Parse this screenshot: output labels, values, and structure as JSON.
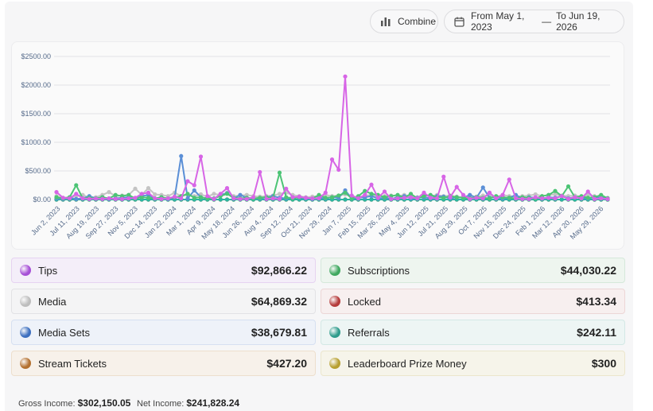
{
  "controls": {
    "combine_label": "Combine",
    "date_from": "From May 1, 2023",
    "date_to": "To Jun 19, 2026"
  },
  "chart_data": {
    "type": "line",
    "title": "",
    "xlabel": "",
    "ylabel": "",
    "ylim": [
      0,
      2500
    ],
    "y_ticks": [
      0,
      500,
      1000,
      1500,
      2000,
      2500
    ],
    "y_tick_labels": [
      "$0.00",
      "$500.00",
      "$1000.00",
      "$1500.00",
      "$2000.00",
      "$2500.00"
    ],
    "x_tick_labels": [
      "Jun 2, 2023",
      "Jul 11, 2023",
      "Aug 19, 2023",
      "Sep 27, 2023",
      "Nov 5, 2023",
      "Dec 14, 2023",
      "Jan 22, 2024",
      "Mar 1, 2024",
      "Apr 9, 2024",
      "May 18, 2024",
      "Jun 26, 2024",
      "Aug 4, 2024",
      "Sep 12, 2024",
      "Oct 21, 2024",
      "Nov 29, 2024",
      "Jan 7, 2025",
      "Feb 15, 2025",
      "Mar 26, 2025",
      "May 4, 2025",
      "Jun 12, 2025",
      "Jul 21, 2025",
      "Aug 29, 2025",
      "Oct 7, 2025",
      "Nov 15, 2025",
      "Dec 24, 2025",
      "Feb 1, 2026",
      "Mar 12, 2026",
      "Apr 20, 2026",
      "May 29, 2026"
    ],
    "grid": true,
    "legend": "none",
    "x_start": "2023-06-02",
    "x_step_days": 13,
    "series": [
      {
        "name": "Tips",
        "color": "#d765e6",
        "values": [
          130,
          30,
          20,
          100,
          20,
          10,
          15,
          10,
          20,
          10,
          10,
          20,
          30,
          100,
          120,
          20,
          10,
          20,
          50,
          20,
          320,
          250,
          750,
          60,
          10,
          100,
          200,
          20,
          10,
          10,
          40,
          480,
          10,
          20,
          10,
          190,
          40,
          50,
          30,
          20,
          20,
          120,
          700,
          520,
          2150,
          70,
          20,
          80,
          260,
          30,
          140,
          10,
          20,
          30,
          40,
          20,
          120,
          30,
          20,
          400,
          40,
          220,
          80,
          10,
          30,
          20,
          120,
          20,
          80,
          350,
          20,
          10,
          10,
          40,
          20,
          30,
          20,
          60,
          10,
          40,
          20,
          140,
          10,
          20,
          10
        ]
      },
      {
        "name": "Subscriptions",
        "color": "#4cc475",
        "values": [
          40,
          20,
          40,
          250,
          20,
          30,
          20,
          40,
          20,
          80,
          60,
          80,
          20,
          40,
          30,
          20,
          40,
          20,
          40,
          60,
          100,
          30,
          40,
          20,
          20,
          60,
          100,
          30,
          20,
          30,
          20,
          30,
          40,
          30,
          470,
          40,
          20,
          40,
          30,
          20,
          80,
          30,
          40,
          70,
          120,
          20,
          60,
          150,
          100,
          80,
          40,
          60,
          80,
          30,
          100,
          20,
          60,
          80,
          40,
          30,
          60,
          40,
          30,
          20,
          40,
          30,
          20,
          60,
          40,
          30,
          20,
          40,
          30,
          20,
          60,
          80,
          150,
          60,
          230,
          40,
          60,
          30,
          40,
          80,
          20
        ]
      },
      {
        "name": "Media",
        "color": "#c4c4c4",
        "values": [
          60,
          30,
          40,
          60,
          80,
          30,
          40,
          80,
          130,
          60,
          70,
          80,
          190,
          80,
          200,
          90,
          80,
          60,
          120,
          60,
          80,
          60,
          90,
          50,
          100,
          80,
          120,
          60,
          70,
          80,
          60,
          50,
          60,
          70,
          100,
          120,
          80,
          60,
          40,
          50,
          60,
          80,
          60,
          70,
          90,
          60,
          40,
          70,
          80,
          50,
          60,
          70,
          60,
          80,
          50,
          40,
          70,
          60,
          80,
          60,
          70,
          50,
          40,
          60,
          50,
          70,
          60,
          40,
          80,
          60,
          50,
          60,
          70,
          90,
          60,
          80,
          90,
          70,
          60,
          70,
          50,
          80,
          60,
          40,
          30
        ]
      },
      {
        "name": "Media Sets",
        "color": "#5b8fd6",
        "values": [
          20,
          10,
          30,
          10,
          20,
          60,
          20,
          40,
          10,
          20,
          30,
          40,
          20,
          60,
          80,
          20,
          40,
          10,
          30,
          760,
          20,
          160,
          40,
          20,
          20,
          80,
          110,
          20,
          80,
          30,
          20,
          20,
          40,
          60,
          30,
          20,
          40,
          30,
          20,
          10,
          30,
          20,
          40,
          30,
          160,
          20,
          30,
          40,
          60,
          20,
          30,
          10,
          40,
          60,
          20,
          30,
          40,
          20,
          60,
          50,
          20,
          40,
          30,
          80,
          30,
          210,
          30,
          40,
          20,
          30,
          80,
          20,
          40,
          30,
          20,
          40,
          30,
          60,
          20,
          40,
          30,
          20,
          40,
          30,
          20
        ]
      },
      {
        "name": "Locked",
        "color": "#c94a4a",
        "values": [
          0,
          0,
          0,
          0,
          0,
          0,
          0,
          0,
          0,
          0,
          0,
          0,
          0,
          0,
          0,
          0,
          0,
          0,
          0,
          0,
          0,
          0,
          0,
          0,
          0,
          0,
          0,
          0,
          0,
          0,
          0,
          0,
          0,
          0,
          0,
          0,
          0,
          0,
          0,
          0,
          0,
          0,
          0,
          0,
          0,
          0,
          0,
          0,
          0,
          0,
          0,
          0,
          0,
          0,
          0,
          0,
          0,
          0,
          0,
          0,
          0,
          0,
          0,
          0,
          0,
          0,
          0,
          0,
          0,
          0,
          0,
          0,
          0,
          0,
          0,
          0,
          0,
          0,
          0,
          0,
          0,
          0,
          0,
          0,
          0
        ]
      },
      {
        "name": "Referrals",
        "color": "#2bb5a0",
        "values": [
          0,
          0,
          0,
          0,
          0,
          0,
          0,
          0,
          0,
          0,
          0,
          0,
          0,
          0,
          0,
          0,
          0,
          0,
          0,
          0,
          0,
          0,
          0,
          0,
          0,
          0,
          0,
          0,
          0,
          0,
          0,
          0,
          0,
          0,
          0,
          0,
          0,
          0,
          0,
          0,
          0,
          0,
          0,
          0,
          0,
          0,
          0,
          0,
          0,
          0,
          0,
          0,
          0,
          0,
          0,
          0,
          0,
          0,
          0,
          0,
          0,
          0,
          0,
          0,
          0,
          0,
          0,
          0,
          0,
          0,
          0,
          0,
          0,
          0,
          0,
          0,
          0,
          0,
          0,
          0,
          0,
          0,
          0,
          0,
          0
        ]
      },
      {
        "name": "Stream Tickets",
        "color": "#c07a3a",
        "values": [
          0,
          0,
          0,
          0,
          0,
          0,
          0,
          0,
          0,
          0,
          0,
          0,
          0,
          0,
          0,
          0,
          0,
          0,
          0,
          0,
          0,
          0,
          0,
          0,
          0,
          0,
          0,
          0,
          0,
          0,
          0,
          0,
          0,
          0,
          0,
          0,
          0,
          0,
          0,
          0,
          0,
          0,
          0,
          0,
          0,
          0,
          0,
          0,
          0,
          0,
          0,
          0,
          0,
          0,
          0,
          0,
          0,
          0,
          0,
          0,
          0,
          0,
          0,
          0,
          0,
          0,
          0,
          0,
          0,
          0,
          0,
          0,
          0,
          0,
          0,
          0,
          0,
          0,
          0,
          0,
          0,
          0,
          0,
          0,
          0
        ]
      },
      {
        "name": "Leaderboard Prize Money",
        "color": "#c9b23c",
        "values": [
          0,
          0,
          0,
          0,
          0,
          0,
          0,
          0,
          0,
          0,
          0,
          0,
          0,
          0,
          0,
          0,
          0,
          0,
          0,
          0,
          0,
          0,
          0,
          0,
          0,
          0,
          0,
          0,
          0,
          0,
          0,
          0,
          0,
          0,
          0,
          0,
          0,
          0,
          0,
          0,
          0,
          0,
          0,
          0,
          0,
          0,
          0,
          0,
          0,
          0,
          0,
          0,
          0,
          0,
          0,
          0,
          0,
          0,
          0,
          0,
          0,
          0,
          0,
          0,
          0,
          0,
          0,
          0,
          0,
          0,
          0,
          0,
          0,
          0,
          0,
          0,
          0,
          0,
          0,
          0,
          0,
          0,
          0,
          0,
          0
        ]
      }
    ]
  },
  "categories": [
    {
      "label": "Tips",
      "value": "$92,866.22",
      "color": "#a64fd6",
      "bg": "#f4eef9",
      "border": "#e6d3f1"
    },
    {
      "label": "Subscriptions",
      "value": "$44,030.22",
      "color": "#3fa85f",
      "bg": "#eef5ef",
      "border": "#d5e8da"
    },
    {
      "label": "Media",
      "value": "$64,869.32",
      "color": "#bdbdbd",
      "bg": "#f4f4f5",
      "border": "#e2e2e5"
    },
    {
      "label": "Locked",
      "value": "$413.34",
      "color": "#b53b3b",
      "bg": "#f7efef",
      "border": "#ecd6d6"
    },
    {
      "label": "Media Sets",
      "value": "$38,679.81",
      "color": "#3d6fbf",
      "bg": "#eef2f9",
      "border": "#d6e0f1"
    },
    {
      "label": "Referrals",
      "value": "$242.11",
      "color": "#2e9c8c",
      "bg": "#edf5f4",
      "border": "#d3e8e5"
    },
    {
      "label": "Stream Tickets",
      "value": "$427.20",
      "color": "#b3702f",
      "bg": "#f7f1ea",
      "border": "#eddfcd"
    },
    {
      "label": "Leaderboard Prize Money",
      "value": "$300",
      "color": "#b79f2f",
      "bg": "#f6f4ea",
      "border": "#ebe6cc"
    }
  ],
  "summary": {
    "gross_label": "Gross Income:",
    "gross_value": "$302,150.05",
    "net_label": "Net Income:",
    "net_value": "$241,828.24"
  }
}
